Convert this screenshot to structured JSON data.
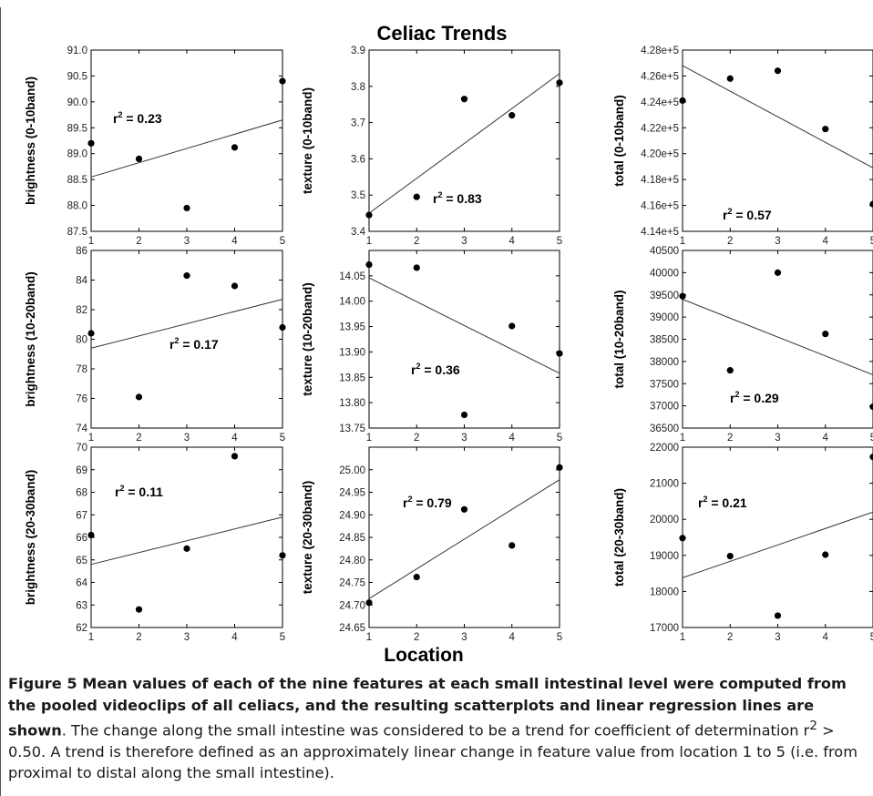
{
  "figure": {
    "title": "Celiac Trends",
    "xlabel": "Location",
    "r2_symbol": "r",
    "r2_sup": "2",
    "r2_eq": " = "
  },
  "caption": {
    "label": "Figure 5",
    "bold_text": " Mean values of each of the nine features at each small intestinal level were computed from the pooled videoclips of all celiacs, and the resulting scatterplots and linear regression lines are shown",
    "rest_1": ". The change along the small intestine was considered to be a trend for coefficient of determination r",
    "sup": "2",
    "rest_2": " > 0.50. A trend is therefore defined as an approximately linear change in feature value from location 1 to 5 (i.e. from proximal to distal along the small intestine)."
  },
  "chart_data": [
    {
      "type": "scatter",
      "ylabel": "brightness (0-10band)",
      "x": [
        1,
        2,
        3,
        4,
        5
      ],
      "y": [
        89.2,
        88.9,
        87.95,
        89.12,
        90.4
      ],
      "fit": [
        88.55,
        89.65
      ],
      "r2": "0.23",
      "ylim": [
        87.5,
        91.0
      ],
      "yticks": [
        "87.5",
        "88.0",
        "88.5",
        "89.0",
        "89.5",
        "90.0",
        "90.5",
        "91.0"
      ],
      "xticks": [
        "1",
        "2",
        "3",
        "4",
        "5"
      ]
    },
    {
      "type": "scatter",
      "ylabel": "texture (0-10band)",
      "x": [
        1,
        2,
        3,
        4,
        5
      ],
      "y": [
        3.445,
        3.495,
        3.765,
        3.72,
        3.81
      ],
      "fit": [
        3.45,
        3.835
      ],
      "r2": "0.83",
      "ylim": [
        3.4,
        3.9
      ],
      "yticks": [
        "3.4",
        "3.5",
        "3.6",
        "3.7",
        "3.8",
        "3.9"
      ],
      "xticks": [
        "1",
        "2",
        "3",
        "4",
        "5"
      ]
    },
    {
      "type": "scatter",
      "ylabel": "total (0-10band)",
      "x": [
        1,
        2,
        3,
        4,
        5
      ],
      "y": [
        424100,
        425800,
        426400,
        421900,
        416100
      ],
      "fit": [
        426800,
        418900
      ],
      "r2": "0.57",
      "ylim": [
        414000,
        428000
      ],
      "yticks": [
        "4.14e+5",
        "4.16e+5",
        "4.18e+5",
        "4.20e+5",
        "4.22e+5",
        "4.24e+5",
        "4.26e+5",
        "4.28e+5"
      ],
      "xticks": [
        "1",
        "2",
        "3",
        "4",
        "5"
      ]
    },
    {
      "type": "scatter",
      "ylabel": "brightness (10-20band)",
      "x": [
        1,
        2,
        3,
        4,
        5
      ],
      "y": [
        80.4,
        76.1,
        84.3,
        83.6,
        80.8
      ],
      "fit": [
        79.4,
        82.7
      ],
      "r2": "0.17",
      "ylim": [
        74,
        86
      ],
      "yticks": [
        "74",
        "76",
        "78",
        "80",
        "82",
        "84",
        "86"
      ],
      "xticks": [
        "1",
        "2",
        "3",
        "4",
        "5"
      ]
    },
    {
      "type": "scatter",
      "ylabel": "texture (10-20band)",
      "x": [
        1,
        2,
        3,
        4,
        5
      ],
      "y": [
        14.072,
        14.066,
        13.776,
        13.951,
        13.897
      ],
      "fit": [
        14.046,
        13.858
      ],
      "r2": "0.36",
      "ylim": [
        13.75,
        14.1
      ],
      "yticks": [
        "13.75",
        "13.80",
        "13.85",
        "13.90",
        "13.95",
        "14.00",
        "14.05"
      ],
      "xticks": [
        "1",
        "2",
        "3",
        "4",
        "5"
      ]
    },
    {
      "type": "scatter",
      "ylabel": "total (10-20band)",
      "x": [
        1,
        2,
        3,
        4,
        5
      ],
      "y": [
        39470,
        37800,
        40000,
        38620,
        36980
      ],
      "fit": [
        39400,
        37700
      ],
      "r2": "0.29",
      "ylim": [
        36500,
        40500
      ],
      "yticks": [
        "36500",
        "37000",
        "37500",
        "38000",
        "38500",
        "39000",
        "39500",
        "40000",
        "40500"
      ],
      "xticks": [
        "1",
        "2",
        "3",
        "4",
        "5"
      ]
    },
    {
      "type": "scatter",
      "ylabel": "brightness (20-30band)",
      "x": [
        1,
        2,
        3,
        4,
        5
      ],
      "y": [
        66.1,
        62.8,
        65.5,
        69.6,
        65.2
      ],
      "fit": [
        64.8,
        66.9
      ],
      "r2": "0.11",
      "ylim": [
        62,
        70
      ],
      "yticks": [
        "62",
        "63",
        "64",
        "65",
        "66",
        "67",
        "68",
        "69",
        "70"
      ],
      "xticks": [
        "1",
        "2",
        "3",
        "4",
        "5"
      ]
    },
    {
      "type": "scatter",
      "ylabel": "texture (20-30band)",
      "x": [
        1,
        2,
        3,
        4,
        5
      ],
      "y": [
        24.705,
        24.762,
        24.912,
        24.832,
        25.005
      ],
      "fit": [
        24.714,
        24.978
      ],
      "r2": "0.79",
      "ylim": [
        24.65,
        25.05
      ],
      "yticks": [
        "24.65",
        "24.70",
        "24.75",
        "24.80",
        "24.85",
        "24.90",
        "24.95",
        "25.00"
      ],
      "xticks": [
        "1",
        "2",
        "3",
        "4",
        "5"
      ]
    },
    {
      "type": "scatter",
      "ylabel": "total (20-30band)",
      "x": [
        1,
        2,
        3,
        4,
        5
      ],
      "y": [
        19480,
        18980,
        17330,
        19020,
        21730
      ],
      "fit": [
        18380,
        20200
      ],
      "r2": "0.21",
      "ylim": [
        17000,
        22000
      ],
      "yticks": [
        "17000",
        "18000",
        "19000",
        "20000",
        "21000",
        "22000"
      ],
      "xticks": [
        "1",
        "2",
        "3",
        "4",
        "5"
      ]
    }
  ]
}
